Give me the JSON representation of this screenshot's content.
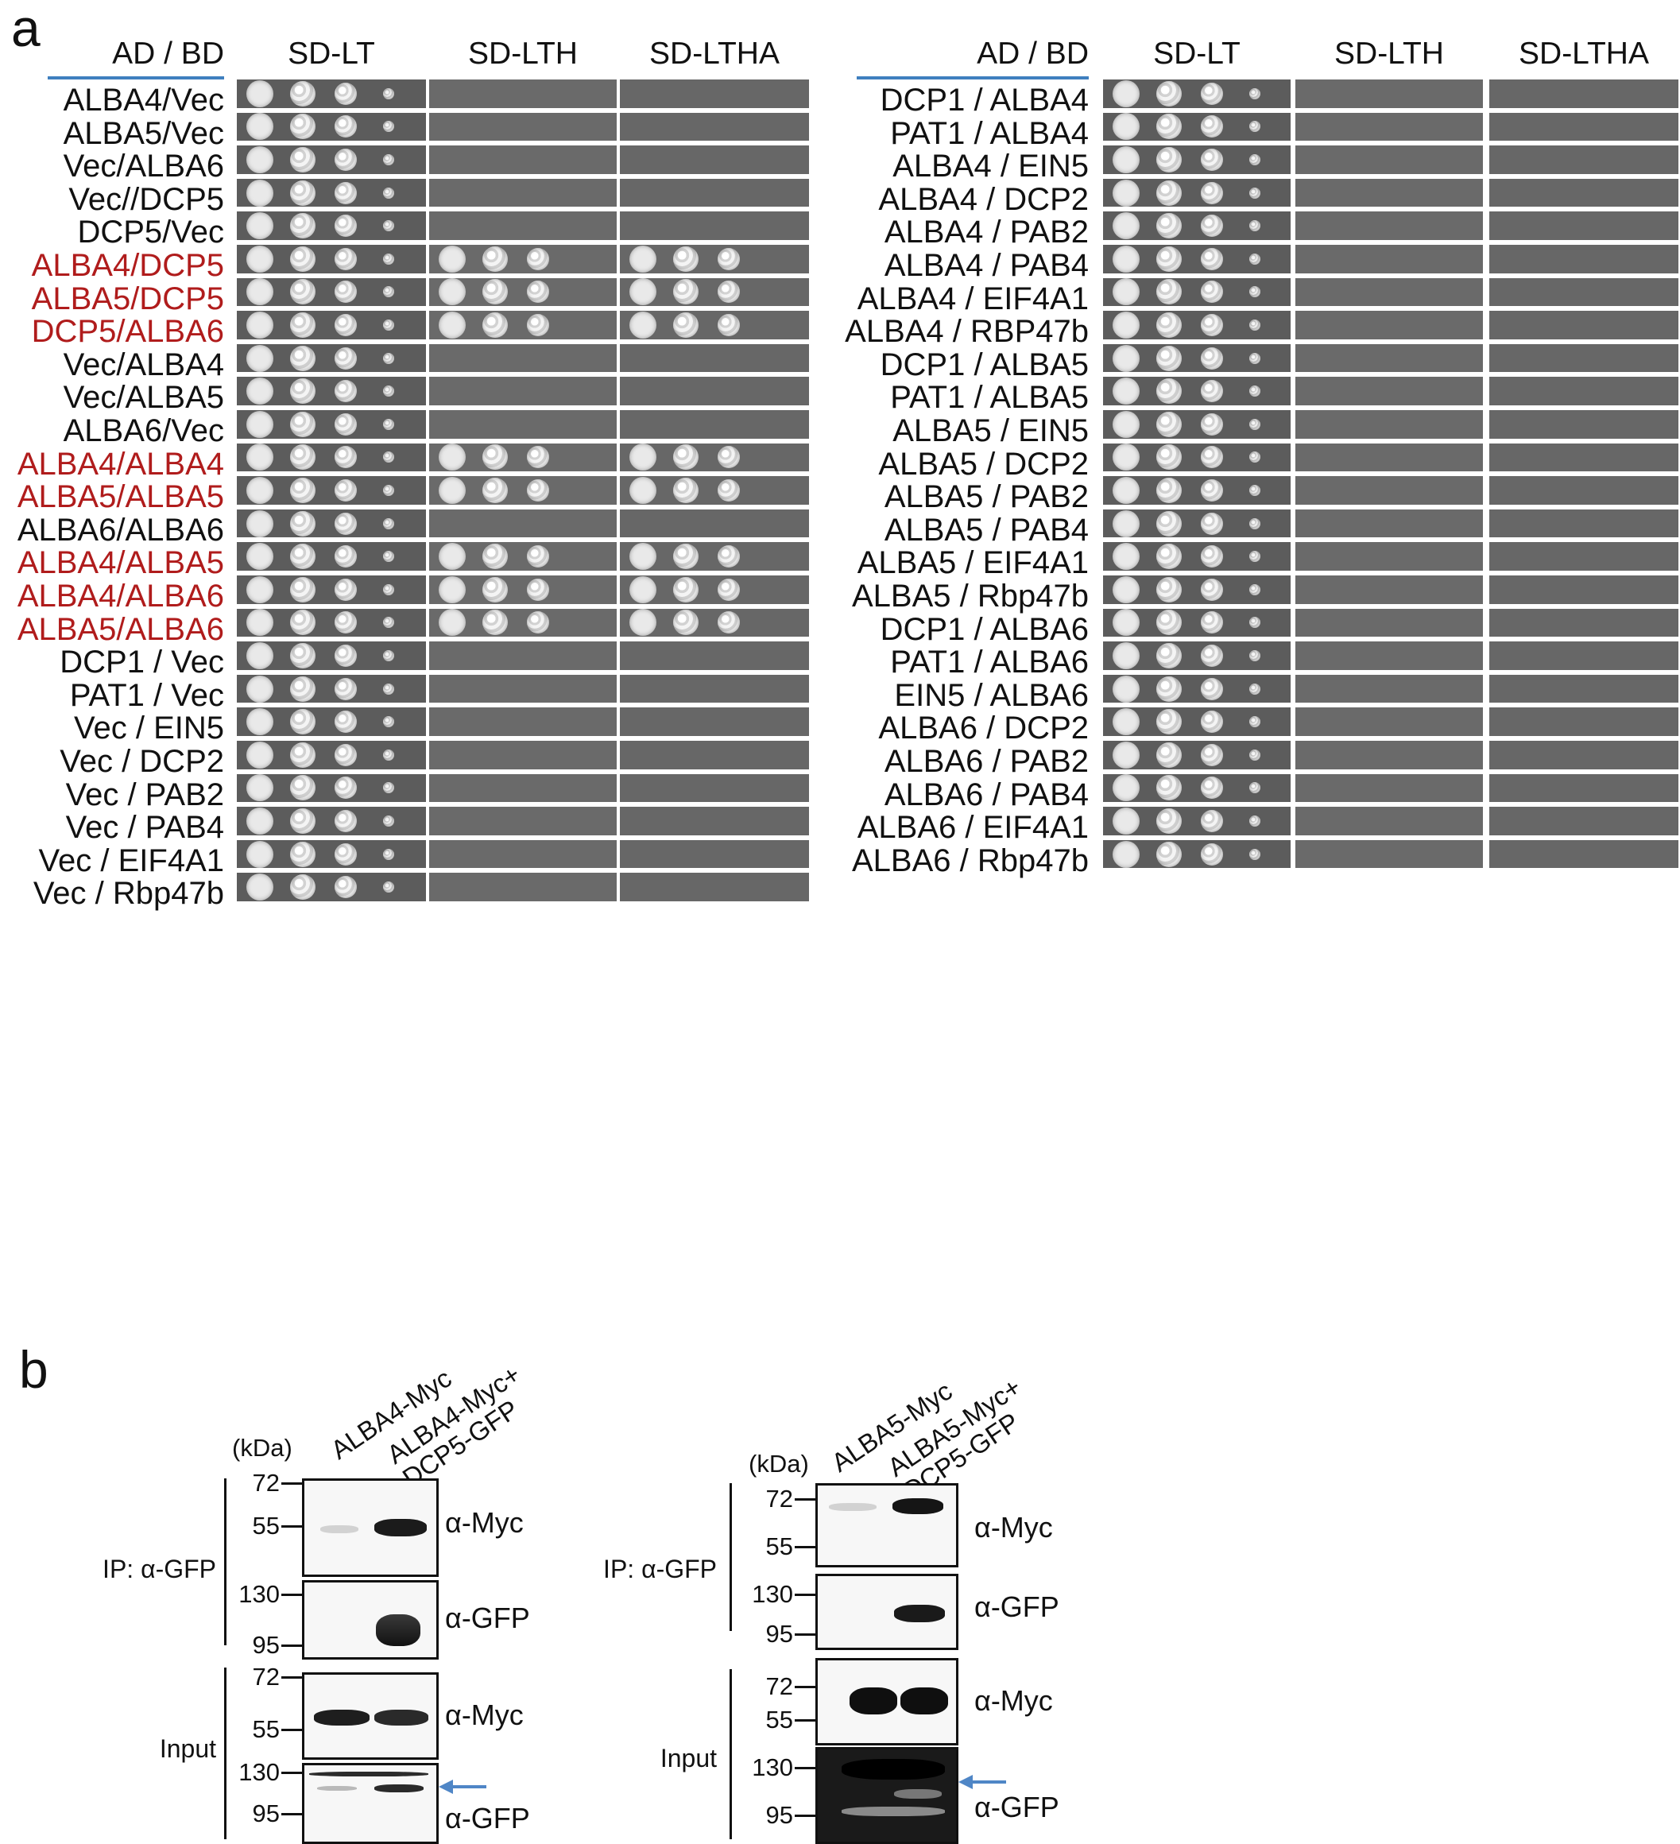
{
  "panel_a": {
    "letter": "a",
    "headers": {
      "ad_bd": "AD / BD",
      "sd_lt": "SD-LT",
      "sd_lth": "SD-LTH",
      "sd_ltha": "SD-LTHA"
    },
    "left_rows": [
      {
        "label": "ALBA4/Vec",
        "positive": false
      },
      {
        "label": "ALBA5/Vec",
        "positive": false
      },
      {
        "label": "Vec/ALBA6",
        "positive": false
      },
      {
        "label": "Vec//DCP5",
        "positive": false
      },
      {
        "label": "DCP5/Vec",
        "positive": false
      },
      {
        "label": "ALBA4/DCP5",
        "positive": true
      },
      {
        "label": "ALBA5/DCP5",
        "positive": true
      },
      {
        "label": "DCP5/ALBA6",
        "positive": true
      },
      {
        "label": "Vec/ALBA4",
        "positive": false
      },
      {
        "label": "Vec/ALBA5",
        "positive": false
      },
      {
        "label": "ALBA6/Vec",
        "positive": false
      },
      {
        "label": "ALBA4/ALBA4",
        "positive": true
      },
      {
        "label": "ALBA5/ALBA5",
        "positive": true
      },
      {
        "label": "ALBA6/ALBA6",
        "positive": false
      },
      {
        "label": "ALBA4/ALBA5",
        "positive": true
      },
      {
        "label": "ALBA4/ALBA6",
        "positive": true
      },
      {
        "label": "ALBA5/ALBA6",
        "positive": true
      },
      {
        "label": "DCP1 / Vec",
        "positive": false
      },
      {
        "label": "PAT1 / Vec",
        "positive": false
      },
      {
        "label": "Vec / EIN5",
        "positive": false
      },
      {
        "label": "Vec / DCP2",
        "positive": false
      },
      {
        "label": "Vec / PAB2",
        "positive": false
      },
      {
        "label": "Vec / PAB4",
        "positive": false
      },
      {
        "label": "Vec / EIF4A1",
        "positive": false
      },
      {
        "label": "Vec / Rbp47b",
        "positive": false
      }
    ],
    "right_rows": [
      {
        "label": "DCP1 / ALBA4",
        "positive": false
      },
      {
        "label": "PAT1 / ALBA4",
        "positive": false
      },
      {
        "label": "ALBA4 / EIN5",
        "positive": false
      },
      {
        "label": "ALBA4 / DCP2",
        "positive": false
      },
      {
        "label": "ALBA4 / PAB2",
        "positive": false
      },
      {
        "label": "ALBA4 / PAB4",
        "positive": false
      },
      {
        "label": "ALBA4 / EIF4A1",
        "positive": false
      },
      {
        "label": "ALBA4 / RBP47b",
        "positive": false
      },
      {
        "label": "DCP1 / ALBA5",
        "positive": false
      },
      {
        "label": "PAT1 / ALBA5",
        "positive": false
      },
      {
        "label": "ALBA5 / EIN5",
        "positive": false
      },
      {
        "label": "ALBA5 / DCP2",
        "positive": false
      },
      {
        "label": "ALBA5 / PAB2",
        "positive": false
      },
      {
        "label": "ALBA5 / PAB4",
        "positive": false
      },
      {
        "label": "ALBA5 / EIF4A1",
        "positive": false
      },
      {
        "label": "ALBA5 / Rbp47b",
        "positive": false
      },
      {
        "label": "DCP1 / ALBA6",
        "positive": false
      },
      {
        "label": "PAT1 / ALBA6",
        "positive": false
      },
      {
        "label": "EIN5 / ALBA6",
        "positive": false
      },
      {
        "label": "ALBA6 / DCP2",
        "positive": false
      },
      {
        "label": "ALBA6 / PAB2",
        "positive": false
      },
      {
        "label": "ALBA6 / PAB4",
        "positive": false
      },
      {
        "label": "ALBA6 / EIF4A1",
        "positive": false
      },
      {
        "label": "ALBA6 / Rbp47b",
        "positive": false
      }
    ],
    "colors": {
      "positive_label": "#b01c1c",
      "header_rule": "#3f7fbf"
    }
  },
  "panel_b": {
    "letter": "b",
    "left": {
      "kda": "(kDa)",
      "lanes": [
        "ALBA4-Myc",
        "ALBA4-Myc+\nDCP5-GFP"
      ],
      "ip_label": "IP: α-GFP",
      "input_label": "Input",
      "blots": [
        {
          "antibody": "α-Myc",
          "markers": [
            "72",
            "55"
          ]
        },
        {
          "antibody": "α-GFP",
          "markers": [
            "130",
            "95"
          ]
        },
        {
          "antibody": "α-Myc",
          "markers": [
            "72",
            "55"
          ]
        },
        {
          "antibody": "α-GFP",
          "markers": [
            "130",
            "95"
          ]
        }
      ]
    },
    "right": {
      "kda": "(kDa)",
      "lanes": [
        "ALBA5-Myc",
        "ALBA5-Myc+\nDCP5-GFP"
      ],
      "ip_label": "IP: α-GFP",
      "input_label": "Input",
      "blots": [
        {
          "antibody": "α-Myc",
          "markers": [
            "72",
            "55"
          ]
        },
        {
          "antibody": "α-GFP",
          "markers": [
            "130",
            "95"
          ]
        },
        {
          "antibody": "α-Myc",
          "markers": [
            "72",
            "55"
          ]
        },
        {
          "antibody": "α-GFP",
          "markers": [
            "130",
            "95"
          ]
        }
      ]
    },
    "arrow_color": "#4f86c6"
  }
}
